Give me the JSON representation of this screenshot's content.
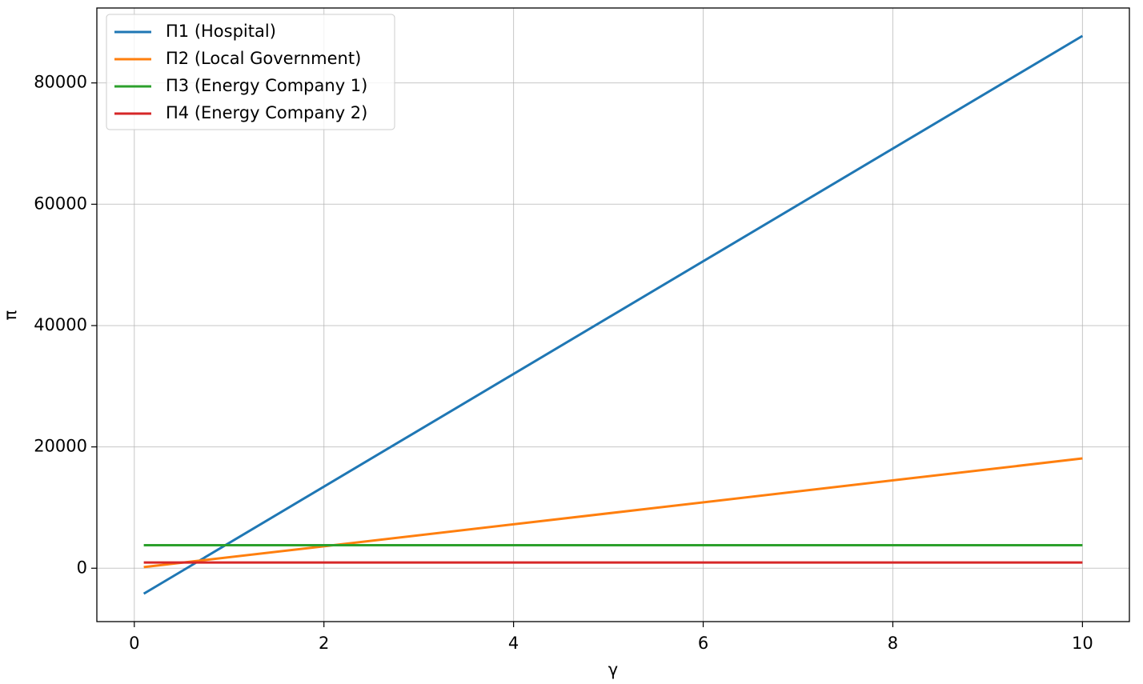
{
  "chart_data": {
    "type": "line",
    "xlabel": "γ",
    "ylabel": "π",
    "xlim": [
      -0.395,
      10.495
    ],
    "ylim": [
      -8800,
      92350
    ],
    "xticks": [
      0,
      2,
      4,
      6,
      8,
      10
    ],
    "yticks": [
      0,
      20000,
      40000,
      60000,
      80000
    ],
    "grid": true,
    "legend": "upper left",
    "x": [
      0.1,
      10
    ],
    "series": [
      {
        "name": "Π1 (Hospital)",
        "color": "#1f77b4",
        "values": [
          -4200,
          87750
        ]
      },
      {
        "name": "Π2 (Local Government)",
        "color": "#ff7f0e",
        "values": [
          180,
          18100
        ]
      },
      {
        "name": "Π3 (Energy Company 1)",
        "color": "#2ca02c",
        "values": [
          3800,
          3800
        ]
      },
      {
        "name": "Π4 (Energy Company 2)",
        "color": "#d62728",
        "values": [
          950,
          950
        ]
      }
    ]
  }
}
